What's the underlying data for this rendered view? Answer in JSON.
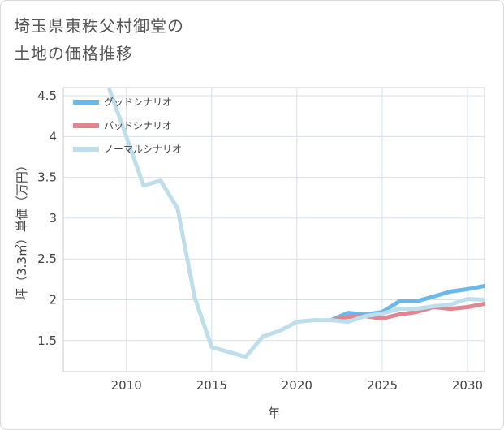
{
  "title_line1": "埼玉県東秩父村御堂の",
  "title_line2": "土地の価格推移",
  "chart_data": {
    "type": "line",
    "xlabel": "年",
    "ylabel": "坪（3.3㎡）単価（万円）",
    "xlim": [
      2006.3,
      2031
    ],
    "ylim": [
      1.12,
      4.6
    ],
    "x_ticks": [
      2010,
      2015,
      2020,
      2025,
      2030
    ],
    "y_ticks": [
      1.5,
      2,
      2.5,
      3,
      3.5,
      4,
      4.5
    ],
    "x_tick_labels": [
      "2010",
      "2015",
      "2020",
      "2025",
      "2030"
    ],
    "y_tick_labels": [
      "1.5",
      "2",
      "2.5",
      "3",
      "3.5",
      "4",
      "4.5"
    ],
    "grid": true,
    "legend_position": "top-left",
    "series": [
      {
        "name": "グッドシナリオ",
        "color": "#6bb8ea",
        "x": [
          2022,
          2023,
          2024,
          2025,
          2026,
          2027,
          2028,
          2029,
          2030,
          2031
        ],
        "y": [
          1.75,
          1.84,
          1.82,
          1.85,
          1.98,
          1.98,
          2.04,
          2.1,
          2.13,
          2.17
        ]
      },
      {
        "name": "バッドシナリオ",
        "color": "#e0868f",
        "x": [
          2022,
          2023,
          2024,
          2025,
          2026,
          2027,
          2028,
          2029,
          2030,
          2031
        ],
        "y": [
          1.75,
          1.79,
          1.8,
          1.77,
          1.82,
          1.85,
          1.91,
          1.89,
          1.91,
          1.95
        ]
      },
      {
        "name": "ノーマルシナリオ",
        "color": "#bfdeec",
        "x": [
          2009,
          2010,
          2011,
          2012,
          2013,
          2014,
          2015,
          2016,
          2017,
          2018,
          2019,
          2020,
          2021,
          2022,
          2023,
          2024,
          2025,
          2026,
          2027,
          2028,
          2029,
          2030,
          2031
        ],
        "y": [
          4.58,
          4.0,
          3.4,
          3.46,
          3.12,
          2.03,
          1.42,
          1.36,
          1.3,
          1.55,
          1.62,
          1.73,
          1.75,
          1.75,
          1.73,
          1.8,
          1.83,
          1.89,
          1.89,
          1.92,
          1.94,
          2.01,
          2.0
        ]
      }
    ]
  }
}
